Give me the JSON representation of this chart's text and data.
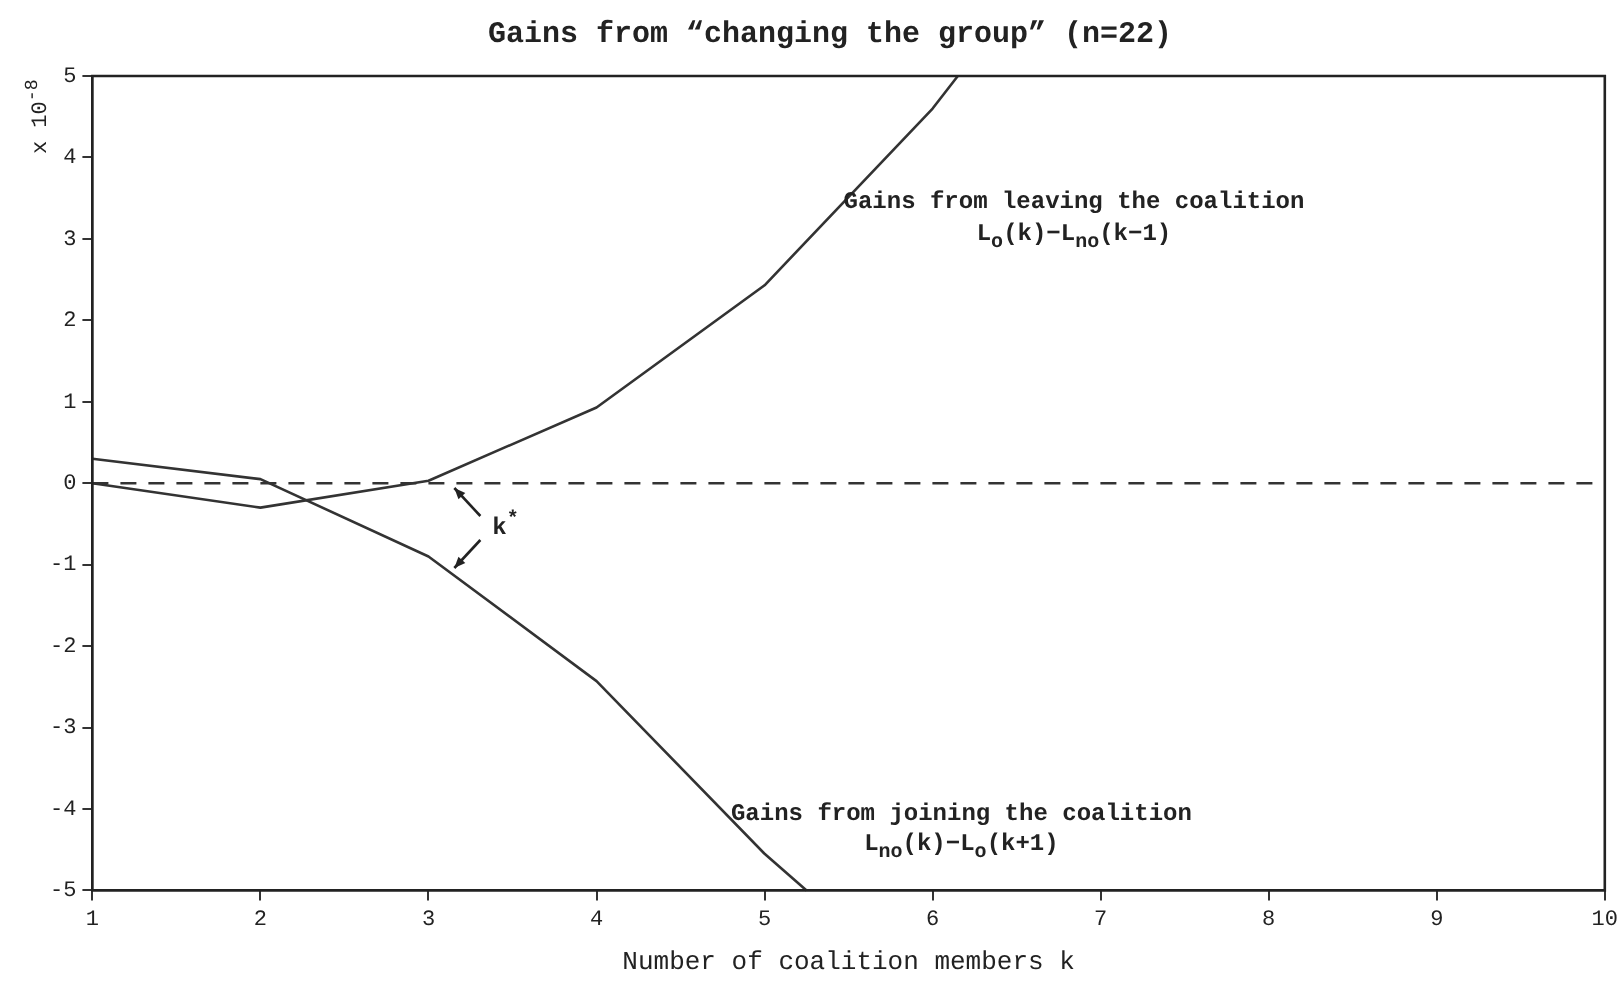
{
  "chart_data": {
    "type": "line",
    "title": "Gains from “changing the group” (n=22)",
    "xlabel": "Number of coalition members k",
    "ylabel": "x 10$^{-8}$",
    "xlim": [
      1,
      10
    ],
    "xticks": [
      1,
      2,
      3,
      4,
      5,
      6,
      7,
      8,
      9,
      10
    ],
    "ylim": [
      -5,
      5
    ],
    "yticks": [
      -5,
      -4,
      -3,
      -2,
      -1,
      0,
      1,
      2,
      3,
      4,
      5
    ],
    "grid": false,
    "legend": false,
    "marker": "none",
    "line_style": "solid",
    "series": [
      {
        "color": "#333333",
        "x": [
          1,
          2,
          3,
          4,
          5,
          6,
          6.15
        ],
        "values": [
          0,
          -0.3,
          0.03,
          0.93,
          2.43,
          4.6,
          5
        ]
      },
      {
        "color": "#333333",
        "x": [
          1,
          2,
          3,
          4,
          5,
          5.25
        ],
        "values": [
          0.3,
          0.05,
          -0.9,
          -2.43,
          -4.55,
          -5
        ]
      }
    ],
    "ref_lines": [
      {
        "axis": "y",
        "value": 0,
        "color": "#333333",
        "line_style": "dashed"
      }
    ],
    "annotations": [
      "Gains from leaving the coalition\nL$_{o}$(k)−L$_{no}$(k−1)",
      "Gains from joining the coalition\nL$_{no}$(k)−L$_{o}$(k+1)",
      "k$^{*}$"
    ]
  }
}
